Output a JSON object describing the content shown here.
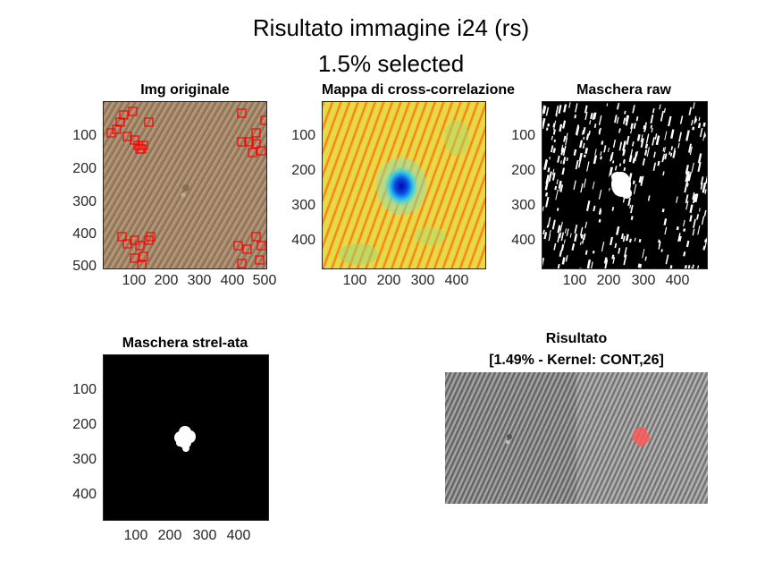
{
  "figure": {
    "title_line1": "Risultato immagine i24 (rs)",
    "title_line2": "1.5% selected"
  },
  "panels": {
    "original": {
      "title": "Img originale",
      "yticks": [
        "100",
        "200",
        "300",
        "400",
        "500"
      ],
      "xticks": [
        "100",
        "200",
        "300",
        "400",
        "500"
      ],
      "texture_color": "#a88a6c",
      "marker_color": "#ff0000"
    },
    "crosscorr": {
      "title": "Mappa di cross-correlazione",
      "yticks": [
        "100",
        "200",
        "300",
        "400"
      ],
      "xticks": [
        "100",
        "200",
        "300",
        "400"
      ],
      "colormap": "jet"
    },
    "mask_raw": {
      "title": "Maschera raw",
      "yticks": [
        "100",
        "200",
        "300",
        "400"
      ],
      "xticks": [
        "100",
        "200",
        "300",
        "400"
      ]
    },
    "mask_strel": {
      "title": "Maschera strel-ata",
      "yticks": [
        "100",
        "200",
        "300",
        "400"
      ],
      "xticks": [
        "100",
        "200",
        "300",
        "400"
      ]
    },
    "result": {
      "title_line1": "Risultato",
      "title_line2": "[1.49% - Kernel: CONT,26]",
      "highlight_color": "#ff5a5a"
    }
  }
}
